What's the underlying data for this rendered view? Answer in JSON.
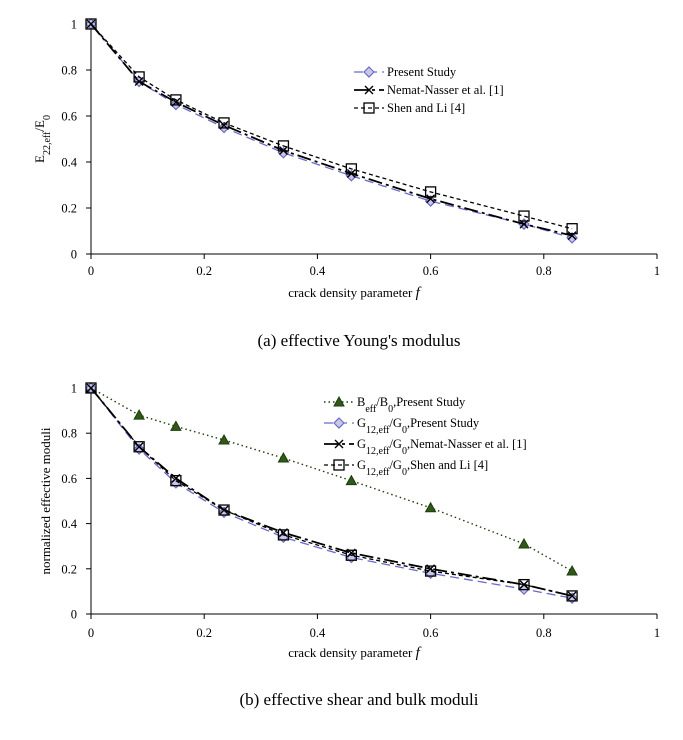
{
  "chart_data": [
    {
      "type": "line",
      "caption": "(a) effective Young's modulus",
      "xlabel": "crack density parameter",
      "xlabel_var": "f",
      "ylabel": "E22,eff/E0",
      "ylabel_parts": {
        "base": "E",
        "sub1": "22,eff",
        "mid": "/E",
        "sub2": "0"
      },
      "xlim": [
        0,
        1
      ],
      "ylim": [
        0,
        1
      ],
      "xticks": [
        "0",
        "0.2",
        "0.4",
        "0.6",
        "0.8",
        "1"
      ],
      "yticks": [
        "0",
        "0.2",
        "0.4",
        "0.6",
        "0.8",
        "1"
      ],
      "legend_position": "upper-right",
      "series": [
        {
          "name": "Present Study",
          "marker": "diamond",
          "color": "#6a6acb",
          "dash": "long",
          "x": [
            0,
            0.085,
            0.15,
            0.235,
            0.34,
            0.46,
            0.6,
            0.765,
            0.85
          ],
          "values": [
            1.0,
            0.75,
            0.65,
            0.55,
            0.44,
            0.34,
            0.23,
            0.13,
            0.07
          ]
        },
        {
          "name": "Nemat-Nasser et al. [1]",
          "marker": "cross",
          "color": "#000000",
          "dash": "longshort",
          "x": [
            0,
            0.085,
            0.15,
            0.235,
            0.34,
            0.46,
            0.6,
            0.765,
            0.85
          ],
          "values": [
            1.0,
            0.75,
            0.66,
            0.56,
            0.45,
            0.35,
            0.24,
            0.13,
            0.08
          ]
        },
        {
          "name": "Shen and Li [4]",
          "marker": "square",
          "color": "#000000",
          "dash": "short",
          "x": [
            0,
            0.085,
            0.15,
            0.235,
            0.34,
            0.46,
            0.6,
            0.765,
            0.85
          ],
          "values": [
            1.0,
            0.77,
            0.67,
            0.57,
            0.47,
            0.37,
            0.27,
            0.165,
            0.11
          ]
        }
      ]
    },
    {
      "type": "line",
      "caption": "(b) effective shear and bulk moduli",
      "xlabel": "crack density parameter",
      "xlabel_var": "f",
      "ylabel": "normalized effective moduli",
      "xlim": [
        0,
        1
      ],
      "ylim": [
        0,
        1
      ],
      "xticks": [
        "0",
        "0.2",
        "0.4",
        "0.6",
        "0.8",
        "1"
      ],
      "yticks": [
        "0",
        "0.2",
        "0.4",
        "0.6",
        "0.8",
        "1"
      ],
      "legend_position": "upper-right",
      "series": [
        {
          "name": "Beff/B0,Present Study",
          "label_parts": [
            {
              "t": "B"
            },
            {
              "t": "eff",
              "sub": true
            },
            {
              "t": "/B"
            },
            {
              "t": "0",
              "sub": true
            },
            {
              "t": ",Present Study"
            }
          ],
          "marker": "triangle",
          "color": "#1f3a0f",
          "dash": "dotted",
          "x": [
            0,
            0.085,
            0.15,
            0.235,
            0.34,
            0.46,
            0.6,
            0.765,
            0.85
          ],
          "values": [
            1.0,
            0.88,
            0.83,
            0.77,
            0.69,
            0.59,
            0.47,
            0.31,
            0.19
          ]
        },
        {
          "name": "G12,eff/G0,Present Study",
          "label_parts": [
            {
              "t": "G"
            },
            {
              "t": "12,eff",
              "sub": true
            },
            {
              "t": "/G"
            },
            {
              "t": "0",
              "sub": true
            },
            {
              "t": ",Present Study"
            }
          ],
          "marker": "diamond",
          "color": "#6a6acb",
          "dash": "long",
          "x": [
            0,
            0.085,
            0.15,
            0.235,
            0.34,
            0.46,
            0.6,
            0.765,
            0.85
          ],
          "values": [
            1.0,
            0.73,
            0.58,
            0.45,
            0.34,
            0.25,
            0.18,
            0.11,
            0.07
          ]
        },
        {
          "name": "G12,eff/G0,Nemat-Nasser et al. [1]",
          "label_parts": [
            {
              "t": "G"
            },
            {
              "t": "12,eff",
              "sub": true
            },
            {
              "t": "/G"
            },
            {
              "t": "0",
              "sub": true
            },
            {
              "t": ",Nemat-Nasser et al. [1]"
            }
          ],
          "marker": "cross",
          "color": "#000000",
          "dash": "longshort",
          "x": [
            0,
            0.085,
            0.15,
            0.235,
            0.34,
            0.46,
            0.6,
            0.765,
            0.85
          ],
          "values": [
            1.0,
            0.74,
            0.6,
            0.46,
            0.36,
            0.27,
            0.2,
            0.13,
            0.08
          ]
        },
        {
          "name": "G12,eff/G0,Shen and Li [4]",
          "label_parts": [
            {
              "t": "G"
            },
            {
              "t": "12,eff",
              "sub": true
            },
            {
              "t": "/G"
            },
            {
              "t": "0",
              "sub": true
            },
            {
              "t": ",Shen and Li [4]"
            }
          ],
          "marker": "square",
          "color": "#000000",
          "dash": "short",
          "x": [
            0,
            0.085,
            0.15,
            0.235,
            0.34,
            0.46,
            0.6,
            0.765,
            0.85
          ],
          "values": [
            1.0,
            0.74,
            0.59,
            0.46,
            0.35,
            0.26,
            0.19,
            0.13,
            0.08
          ]
        }
      ]
    }
  ]
}
